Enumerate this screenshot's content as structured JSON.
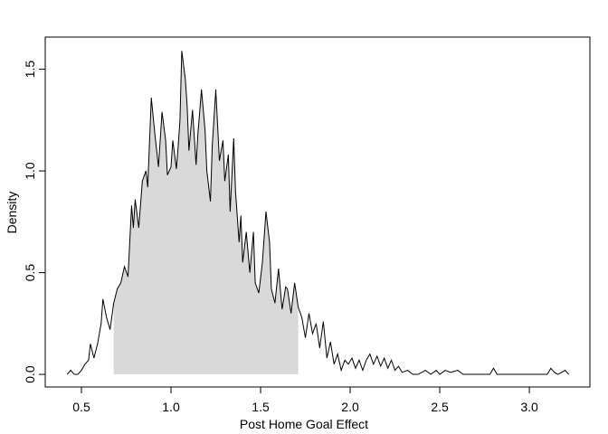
{
  "chart_data": {
    "type": "density",
    "xlabel": "Post Home Goal Effect",
    "ylabel": "Density",
    "x": [
      0.42,
      0.44,
      0.46,
      0.48,
      0.5,
      0.52,
      0.54,
      0.55,
      0.57,
      0.59,
      0.61,
      0.62,
      0.64,
      0.66,
      0.68,
      0.7,
      0.72,
      0.74,
      0.76,
      0.78,
      0.79,
      0.8,
      0.82,
      0.84,
      0.86,
      0.87,
      0.89,
      0.91,
      0.93,
      0.95,
      0.97,
      0.98,
      1.0,
      1.01,
      1.03,
      1.04,
      1.05,
      1.06,
      1.08,
      1.09,
      1.1,
      1.12,
      1.14,
      1.15,
      1.17,
      1.19,
      1.2,
      1.22,
      1.23,
      1.25,
      1.27,
      1.29,
      1.3,
      1.32,
      1.33,
      1.35,
      1.36,
      1.38,
      1.39,
      1.4,
      1.42,
      1.44,
      1.46,
      1.47,
      1.49,
      1.51,
      1.53,
      1.55,
      1.56,
      1.58,
      1.6,
      1.62,
      1.64,
      1.65,
      1.67,
      1.69,
      1.71,
      1.73,
      1.75,
      1.77,
      1.79,
      1.81,
      1.83,
      1.85,
      1.87,
      1.89,
      1.91,
      1.93,
      1.95,
      1.97,
      1.99,
      2.01,
      2.03,
      2.05,
      2.07,
      2.09,
      2.11,
      2.13,
      2.15,
      2.17,
      2.19,
      2.21,
      2.23,
      2.25,
      2.27,
      2.29,
      2.32,
      2.35,
      2.38,
      2.42,
      2.45,
      2.48,
      2.5,
      2.53,
      2.56,
      2.6,
      2.63,
      2.7,
      2.78,
      2.8,
      2.82,
      3.0,
      3.1,
      3.12,
      3.14,
      3.16,
      3.2,
      3.22
    ],
    "values": [
      0.0,
      0.02,
      0.0,
      0.0,
      0.02,
      0.05,
      0.07,
      0.15,
      0.08,
      0.15,
      0.25,
      0.37,
      0.28,
      0.22,
      0.35,
      0.42,
      0.45,
      0.53,
      0.48,
      0.83,
      0.72,
      0.86,
      0.72,
      0.95,
      1.0,
      0.92,
      1.36,
      1.18,
      1.02,
      1.29,
      1.15,
      0.98,
      1.02,
      1.15,
      1.01,
      1.12,
      1.25,
      1.59,
      1.45,
      1.32,
      1.1,
      1.3,
      1.03,
      1.18,
      1.4,
      1.2,
      1.0,
      0.85,
      1.12,
      1.4,
      1.05,
      1.15,
      0.95,
      1.08,
      0.8,
      1.16,
      0.9,
      0.65,
      0.78,
      0.55,
      0.7,
      0.5,
      0.7,
      0.45,
      0.4,
      0.55,
      0.8,
      0.65,
      0.42,
      0.35,
      0.52,
      0.32,
      0.43,
      0.42,
      0.3,
      0.45,
      0.33,
      0.28,
      0.18,
      0.3,
      0.2,
      0.25,
      0.13,
      0.26,
      0.08,
      0.16,
      0.05,
      0.1,
      0.02,
      0.07,
      0.05,
      0.08,
      0.03,
      0.07,
      0.02,
      0.07,
      0.1,
      0.05,
      0.09,
      0.04,
      0.08,
      0.03,
      0.07,
      0.02,
      0.04,
      0.01,
      0.02,
      0.0,
      0.0,
      0.02,
      0.0,
      0.02,
      0.0,
      0.02,
      0.01,
      0.02,
      0.0,
      0.0,
      0.0,
      0.03,
      0.0,
      0.0,
      0.0,
      0.03,
      0.01,
      0.0,
      0.02,
      0.0
    ],
    "shade_range": [
      0.68,
      1.71
    ],
    "color": "#000000",
    "shade_color": "#d9d9d9",
    "xlim": [
      0.298,
      3.338
    ],
    "ylim": [
      -0.062,
      1.658
    ],
    "xticks": [
      0.5,
      {
        "value": 1,
        "label": "1.0"
      },
      1.5,
      {
        "value": 2,
        "label": "2.0"
      },
      2.5,
      {
        "value": 3,
        "label": "3.0"
      }
    ],
    "yticks": [
      {
        "value": 0,
        "label": "0.0"
      },
      0.5,
      {
        "value": 1,
        "label": "1.0"
      },
      1.5
    ]
  }
}
